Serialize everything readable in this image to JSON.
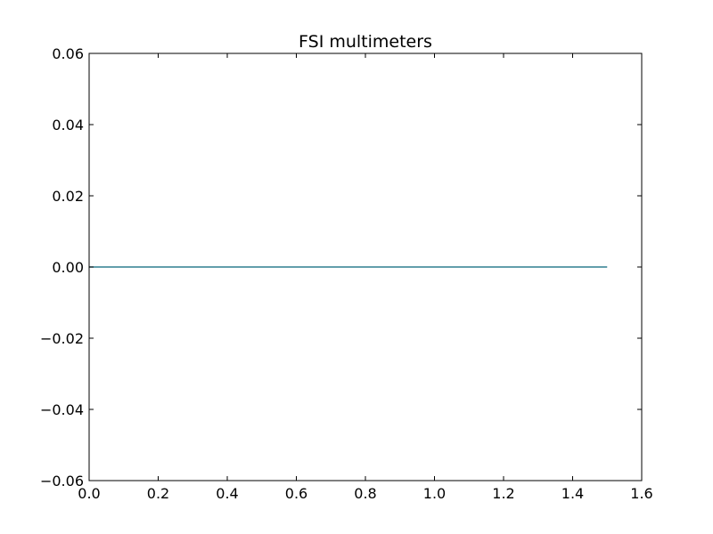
{
  "chart_data": {
    "type": "line",
    "title": "FSI multimeters",
    "xlabel": "",
    "ylabel": "",
    "xlim": [
      0.0,
      1.6
    ],
    "ylim": [
      -0.06,
      0.06
    ],
    "x_ticks": [
      0.0,
      0.2,
      0.4,
      0.6,
      0.8,
      1.0,
      1.2,
      1.4,
      1.6
    ],
    "x_tick_labels": [
      "0.0",
      "0.2",
      "0.4",
      "0.6",
      "0.8",
      "1.0",
      "1.2",
      "1.4",
      "1.6"
    ],
    "y_ticks": [
      0.06,
      0.04,
      0.02,
      0.0,
      -0.02,
      -0.04,
      -0.06
    ],
    "y_tick_labels": [
      "0.06",
      "0.04",
      "0.02",
      "0.00",
      "−0.02",
      "−0.04",
      "−0.06"
    ],
    "grid": false,
    "series": [
      {
        "color": "#2e7f8f",
        "x": [
          0.0,
          1.5
        ],
        "y": [
          0.0,
          0.0
        ]
      }
    ]
  }
}
